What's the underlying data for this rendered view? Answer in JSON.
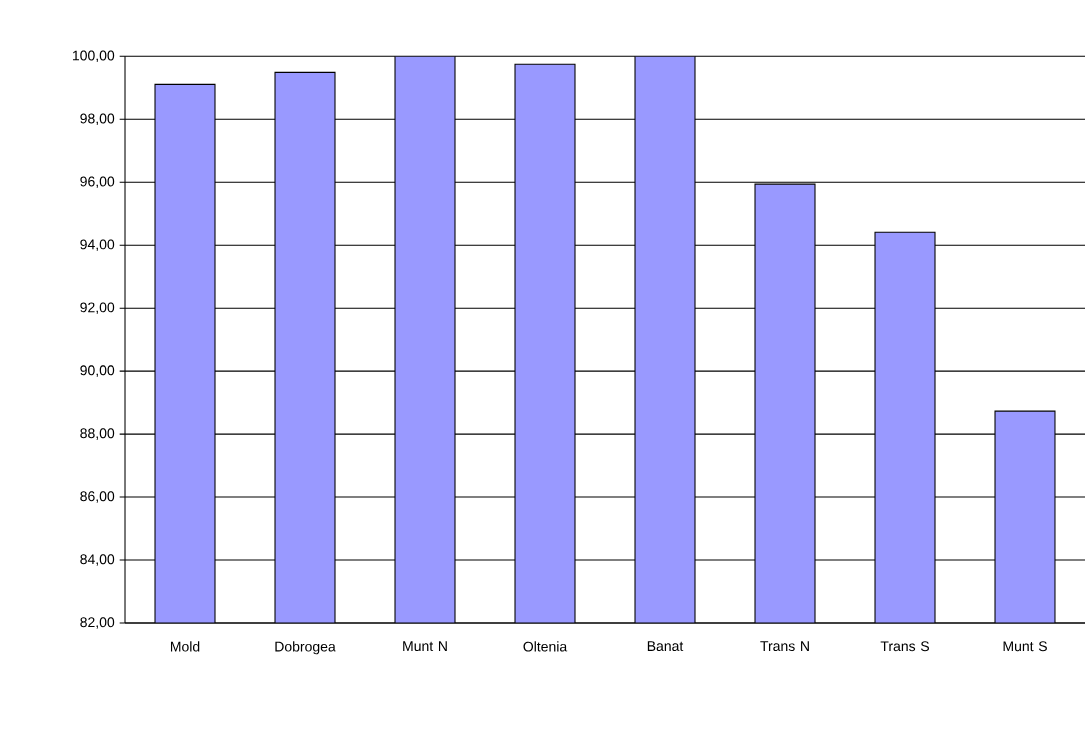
{
  "chart_data": {
    "type": "bar",
    "categories": [
      "Mold",
      "Dobrogea",
      "Munt N",
      "Oltenia",
      "Banat",
      "Trans N",
      "Trans S",
      "Munt S"
    ],
    "values": [
      99.11,
      99.49,
      100,
      99.75,
      100,
      95.94,
      94.41,
      88.73
    ],
    "color": "#9999ff",
    "ylim": [
      82,
      100
    ],
    "yticks": [
      {
        "value": 82,
        "label": "82,00"
      },
      {
        "value": 84,
        "label": "84,00"
      },
      {
        "value": 86,
        "label": "86,00"
      },
      {
        "value": 88,
        "label": "88,00"
      },
      {
        "value": 90,
        "label": "90,00"
      },
      {
        "value": 92,
        "label": "92,00"
      },
      {
        "value": 94,
        "label": "94,00"
      },
      {
        "value": 96,
        "label": "96,00"
      },
      {
        "value": 98,
        "label": "98,00"
      },
      {
        "value": 100,
        "label": "100,00"
      }
    ],
    "grid": "y"
  }
}
